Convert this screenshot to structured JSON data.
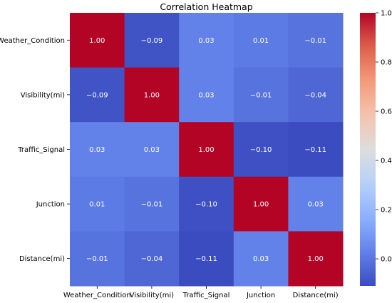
{
  "chart_data": {
    "type": "heatmap",
    "title": "Correlation Heatmap",
    "rows": [
      "Weather_Condition",
      "Visibility(mi)",
      "Traffic_Signal",
      "Junction",
      "Distance(mi)"
    ],
    "columns": [
      "Weather_Condition",
      "Visibility(mi)",
      "Traffic_Signal",
      "Junction",
      "Distance(mi)"
    ],
    "values": [
      [
        1.0,
        -0.09,
        0.03,
        0.01,
        -0.01
      ],
      [
        -0.09,
        1.0,
        0.03,
        -0.01,
        -0.04
      ],
      [
        0.03,
        0.03,
        1.0,
        -0.1,
        -0.11
      ],
      [
        0.01,
        -0.01,
        -0.1,
        1.0,
        0.03
      ],
      [
        -0.01,
        -0.04,
        -0.11,
        0.03,
        1.0
      ]
    ],
    "value_format": "0.00",
    "colormap": "coolwarm",
    "vmin": -0.11,
    "vmax": 1.0,
    "colorbar_ticks": [
      0.0,
      0.2,
      0.4,
      0.6,
      0.8,
      1.0
    ],
    "colorbar_placement": "right",
    "colors": {
      "low": "#3b4cc0",
      "mid": "#dddddd",
      "high": "#b40426"
    }
  }
}
